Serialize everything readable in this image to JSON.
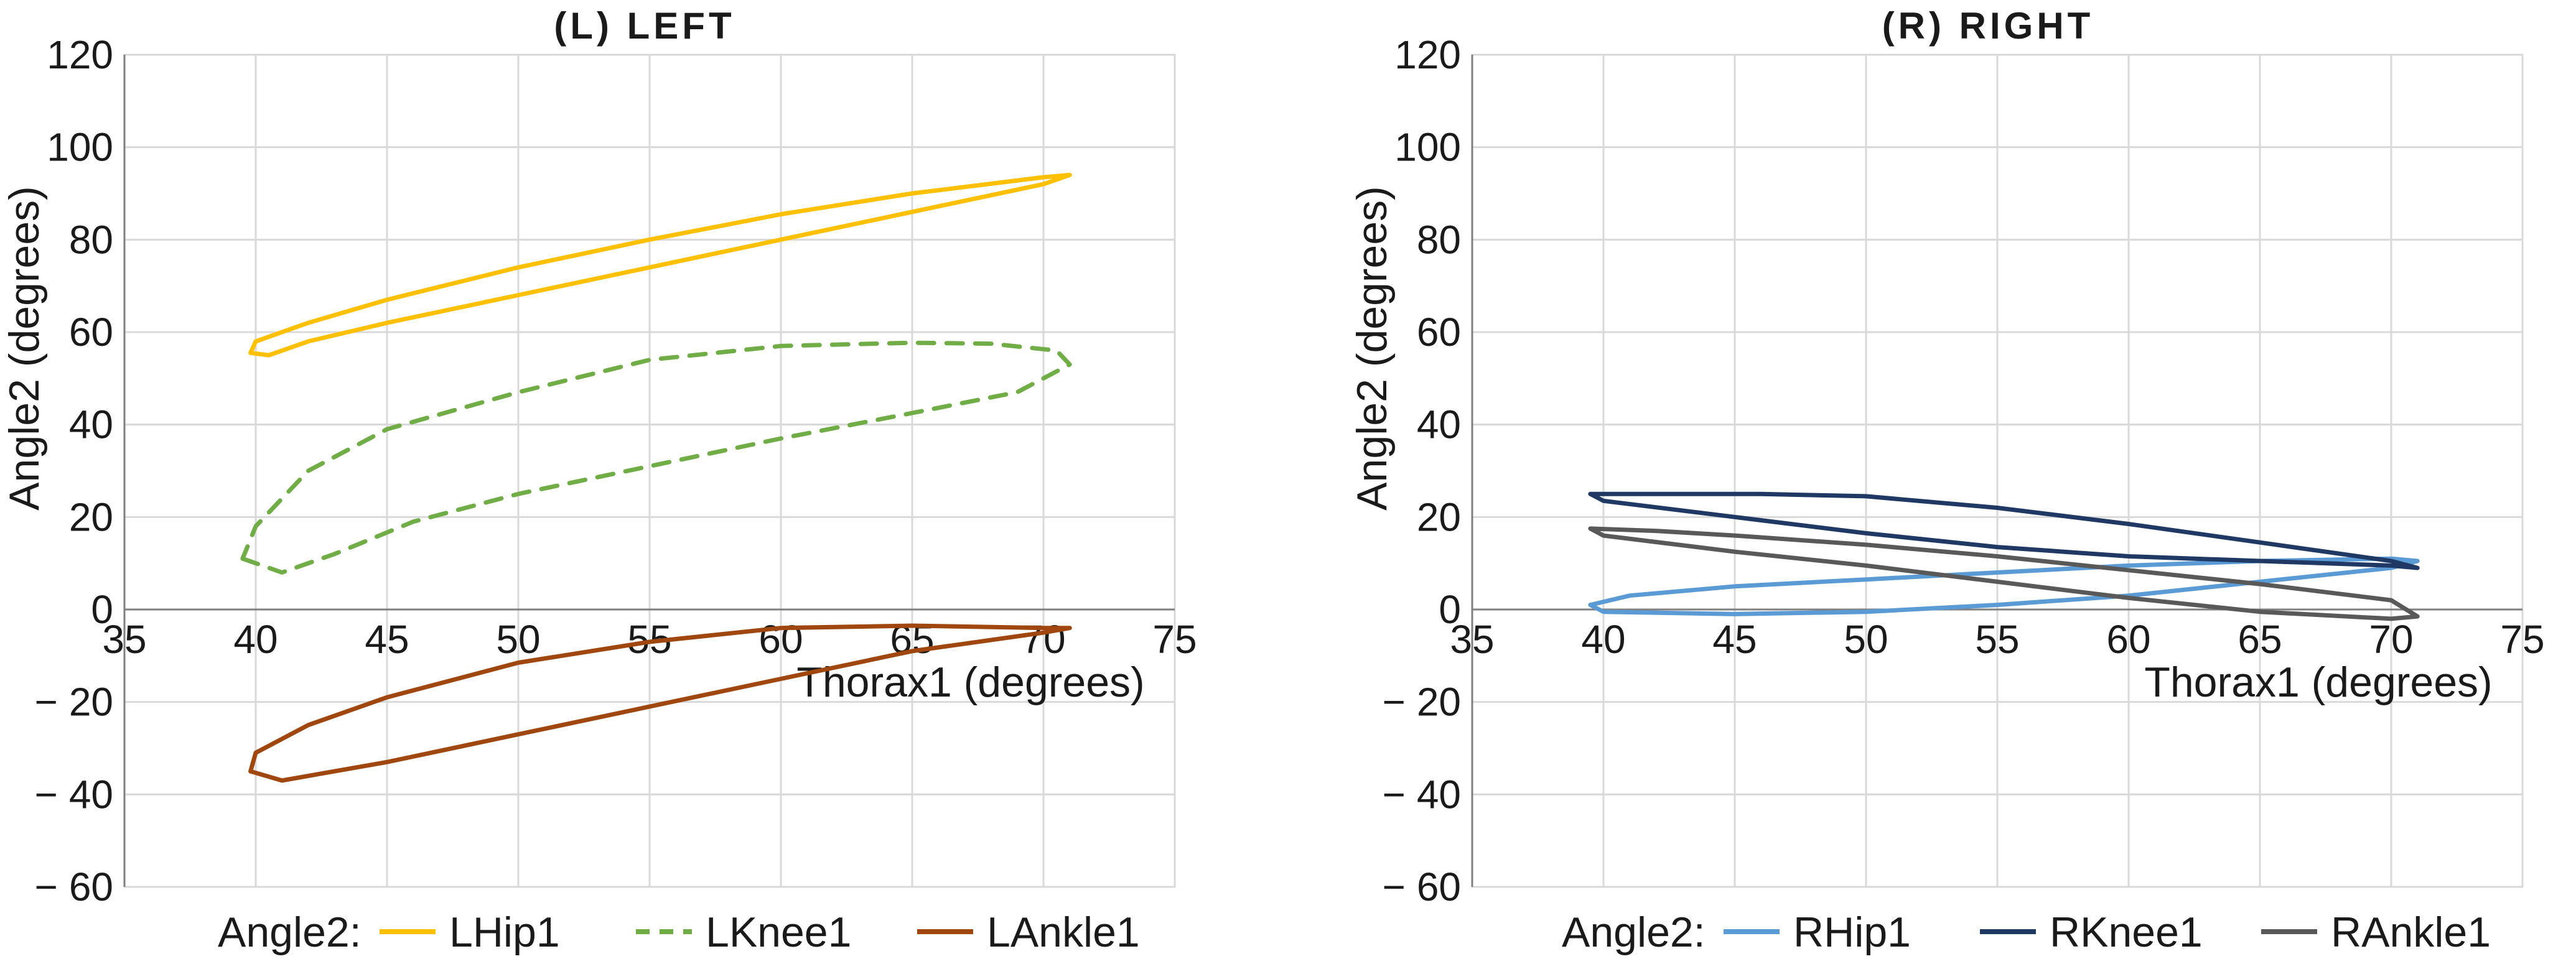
{
  "chart_data": [
    {
      "type": "line",
      "panel": "left",
      "title": "(L) LEFT",
      "xlabel": "Thorax1 (degrees)",
      "ylabel": "Angle2 (degrees)",
      "xlim": [
        35,
        75
      ],
      "ylim": [
        -60,
        120
      ],
      "xticks": [
        35,
        40,
        45,
        50,
        55,
        60,
        65,
        70,
        75
      ],
      "yticks": [
        120,
        100,
        80,
        60,
        40,
        20,
        0,
        -20,
        -40,
        -60
      ],
      "ytick_labels": [
        "120",
        "100",
        "80",
        "60",
        "40",
        "20",
        "0",
        "− 20",
        "− 40",
        "− 60"
      ],
      "grid": true,
      "legend_title": "Angle2:",
      "legend_position": "bottom",
      "series": [
        {
          "name": "LHip1",
          "color": "#ffc000",
          "dash": "solid",
          "x": [
            40,
            42,
            45,
            50,
            55,
            60,
            65,
            70,
            71,
            70,
            65,
            60,
            55,
            50,
            45,
            42,
            40.5,
            39.8,
            40
          ],
          "y": [
            58,
            62,
            67,
            74,
            80,
            85.5,
            90,
            93.5,
            94,
            92,
            86,
            80,
            74,
            68,
            62,
            58,
            55,
            55.5,
            58
          ]
        },
        {
          "name": "LKnee1",
          "color": "#70ad47",
          "dash": "dashed",
          "x": [
            39.5,
            41,
            43,
            46,
            50,
            55,
            60,
            65,
            69,
            71,
            70.5,
            68,
            65,
            60,
            55,
            50,
            45,
            42,
            40,
            39.5
          ],
          "y": [
            11,
            8,
            12,
            19,
            25,
            31,
            37,
            42.5,
            47,
            53,
            56,
            57.5,
            57.7,
            57,
            54,
            47,
            39,
            30,
            18,
            11
          ]
        },
        {
          "name": "LAnkle1",
          "color": "#a0470f",
          "dash": "solid",
          "x": [
            39.8,
            41,
            45,
            50,
            55,
            60,
            65,
            70,
            71,
            70,
            65,
            60,
            55,
            50,
            45,
            42,
            40,
            39.8
          ],
          "y": [
            -35,
            -37,
            -33,
            -27,
            -21,
            -15,
            -9,
            -5,
            -4,
            -4,
            -3.5,
            -4,
            -7,
            -11.5,
            -19,
            -25,
            -31,
            -35
          ]
        }
      ]
    },
    {
      "type": "line",
      "panel": "right",
      "title": "(R) RIGHT",
      "xlabel": "Thorax1 (degrees)",
      "ylabel": "Angle2 (degrees)",
      "xlim": [
        35,
        75
      ],
      "ylim": [
        -60,
        120
      ],
      "xticks": [
        35,
        40,
        45,
        50,
        55,
        60,
        65,
        70,
        75
      ],
      "yticks": [
        120,
        100,
        80,
        60,
        40,
        20,
        0,
        -20,
        -40,
        -60
      ],
      "ytick_labels": [
        "120",
        "100",
        "80",
        "60",
        "40",
        "20",
        "0",
        "− 20",
        "− 40",
        "− 60"
      ],
      "grid": true,
      "legend_title": "Angle2:",
      "legend_position": "bottom",
      "series": [
        {
          "name": "RHip1",
          "color": "#5b9bd5",
          "dash": "solid",
          "x": [
            39.5,
            41,
            45,
            50,
            55,
            60,
            65,
            70,
            71,
            70,
            65,
            60,
            55,
            50,
            45,
            40,
            39.5
          ],
          "y": [
            1,
            3,
            5,
            6.5,
            8,
            9.5,
            10.5,
            11,
            10.5,
            9,
            6,
            3,
            1,
            -0.5,
            -1,
            -0.5,
            1
          ]
        },
        {
          "name": "RKnee1",
          "color": "#1f3864",
          "dash": "solid",
          "x": [
            39.5,
            42,
            46,
            50,
            55,
            60,
            65,
            70,
            71,
            70,
            65,
            60,
            55,
            50,
            45,
            40,
            39.5
          ],
          "y": [
            25,
            25,
            25,
            24.5,
            22,
            18.5,
            14.5,
            10.5,
            9,
            9.5,
            10.5,
            11.5,
            13.5,
            16.5,
            20,
            23.5,
            25
          ]
        },
        {
          "name": "RAnkle1",
          "color": "#595959",
          "dash": "solid",
          "x": [
            39.5,
            42,
            45,
            50,
            55,
            60,
            65,
            70,
            71,
            70,
            65,
            60,
            55,
            50,
            45,
            40,
            39.5
          ],
          "y": [
            17.5,
            17,
            16,
            14,
            11.5,
            8.5,
            5.5,
            2,
            -1.5,
            -2,
            -0.5,
            2.5,
            6,
            9.5,
            12.5,
            16,
            17.5
          ]
        }
      ]
    }
  ]
}
